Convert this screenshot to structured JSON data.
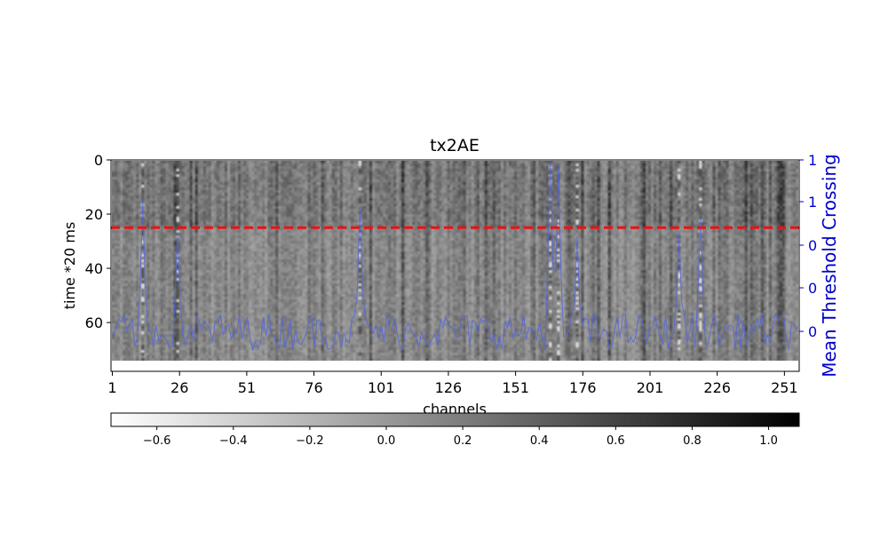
{
  "chart_data": {
    "type": "heatmap",
    "title": "tx2AE",
    "xlabel": "channels",
    "ylabel": "time *20 ms",
    "y2label": "Mean Threshold Crossing",
    "x_ticks": [
      "1",
      "26",
      "51",
      "76",
      "101",
      "126",
      "151",
      "176",
      "201",
      "226",
      "251"
    ],
    "x_tick_values": [
      1,
      26,
      51,
      76,
      101,
      126,
      151,
      176,
      201,
      226,
      251
    ],
    "x_range": [
      0.5,
      256.5
    ],
    "y_ticks": [
      "0",
      "20",
      "40",
      "60"
    ],
    "y_tick_values": [
      0,
      20,
      40,
      60
    ],
    "y_range": [
      0,
      78
    ],
    "y2_ticks": [
      "1",
      "1",
      "0",
      "0",
      "0"
    ],
    "colorbar": {
      "ticks": [
        "−0.6",
        "−0.4",
        "−0.2",
        "0.0",
        "0.2",
        "0.4",
        "0.6",
        "0.8",
        "1.0"
      ],
      "tick_values": [
        -0.6,
        -0.4,
        -0.2,
        0.0,
        0.2,
        0.4,
        0.6,
        0.8,
        1.0
      ],
      "range": [
        -0.72,
        1.08
      ],
      "colormap": "gray_r"
    },
    "threshold_line": {
      "y": 25,
      "color": "#ee1111",
      "style": "dashed"
    },
    "overlay_color": "#5566dd",
    "peaks": [
      {
        "channel": 12,
        "value": 0.78
      },
      {
        "channel": 25,
        "value": 0.62
      },
      {
        "channel": 93,
        "value": 0.75
      },
      {
        "channel": 164,
        "value": 1.0
      },
      {
        "channel": 167,
        "value": 0.95
      },
      {
        "channel": 174,
        "value": 0.6
      },
      {
        "channel": 212,
        "value": 0.62
      },
      {
        "channel": 220,
        "value": 0.7
      }
    ]
  },
  "colors": {
    "axis": "#000000",
    "right_axis": "#0000cc"
  }
}
